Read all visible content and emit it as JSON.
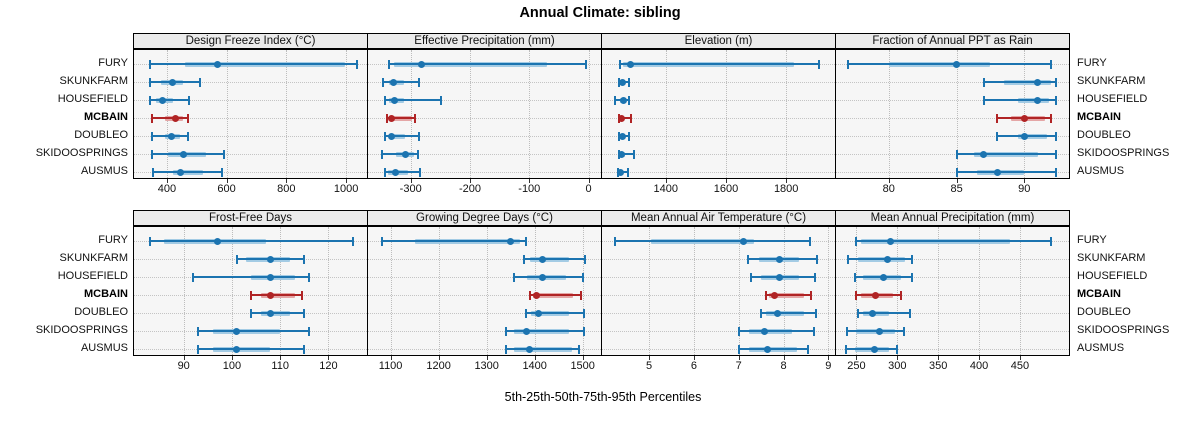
{
  "title": "Annual Climate: sibling",
  "axis_title": "5th-25th-50th-75th-95th Percentiles",
  "sites": [
    "FURY",
    "SKUNKFARM",
    "HOUSEFIELD",
    "MCBAIN",
    "DOUBLEO",
    "SKIDOOSPRINGS",
    "AUSMUS"
  ],
  "highlight_site": "MCBAIN",
  "percentile_labels": [
    "5th",
    "25th",
    "50th",
    "75th",
    "95th"
  ],
  "colors": {
    "series_main": "#1c74b0",
    "series_band": "#a3cbe4",
    "highlight_main": "#b02425",
    "highlight_band": "#e4a6a6",
    "strip_bg": "#ebebeb",
    "panel_bg": "#f6f6f6",
    "grid": "#bdbdbd",
    "border": "#000000"
  },
  "chart_data": {
    "type": "dot-whisker-percentiles",
    "value_order": [
      "p5",
      "p25",
      "p50",
      "p75",
      "p95"
    ],
    "legend_position": "none",
    "grid": "dotted",
    "layout": "2 rows x 4 columns, shared site axis; MCBAIN highlighted in red",
    "panels": [
      {
        "title": "Design Freeze Index (°C)",
        "xlim": [
          290,
          1070
        ],
        "ticks": [
          400,
          600,
          800,
          1000
        ],
        "series": [
          {
            "site": "FURY",
            "values": [
              345,
              460,
              570,
              995,
              1035
            ]
          },
          {
            "site": "SKUNKFARM",
            "values": [
              345,
              380,
              420,
              455,
              510
            ]
          },
          {
            "site": "HOUSEFIELD",
            "values": [
              345,
              365,
              385,
              420,
              475
            ]
          },
          {
            "site": "MCBAIN",
            "values": [
              350,
              395,
              430,
              455,
              470
            ]
          },
          {
            "site": "DOUBLEO",
            "values": [
              350,
              395,
              415,
              445,
              470
            ]
          },
          {
            "site": "SKIDOOSPRINGS",
            "values": [
              350,
              405,
              455,
              530,
              590
            ]
          },
          {
            "site": "AUSMUS",
            "values": [
              355,
              420,
              445,
              520,
              585
            ]
          }
        ]
      },
      {
        "title": "Effective Precipitation (mm)",
        "xlim": [
          -372,
          21
        ],
        "ticks": [
          -300,
          -200,
          -100,
          0
        ],
        "series": [
          {
            "site": "FURY",
            "values": [
              -336,
              -328,
              -282,
              -70,
              -5
            ]
          },
          {
            "site": "SKUNKFARM",
            "values": [
              -347,
              -337,
              -329,
              -312,
              -286
            ]
          },
          {
            "site": "HOUSEFIELD",
            "values": [
              -344,
              -337,
              -328,
              -311,
              -249
            ]
          },
          {
            "site": "MCBAIN",
            "values": [
              -340,
              -336,
              -332,
              -297,
              -292
            ]
          },
          {
            "site": "DOUBLEO",
            "values": [
              -343,
              -336,
              -332,
              -310,
              -286
            ]
          },
          {
            "site": "SKIDOOSPRINGS",
            "values": [
              -349,
              -325,
              -309,
              -295,
              -288
            ]
          },
          {
            "site": "AUSMUS",
            "values": [
              -344,
              -338,
              -326,
              -305,
              -284
            ]
          }
        ]
      },
      {
        "title": "Elevation (m)",
        "xlim": [
          1188,
          1962
        ],
        "ticks": [
          1400,
          1600,
          1800
        ],
        "series": [
          {
            "site": "FURY",
            "values": [
              1248,
              1256,
              1281,
              1826,
              1908
            ]
          },
          {
            "site": "SKUNKFARM",
            "values": [
              1243,
              1250,
              1256,
              1265,
              1276
            ]
          },
          {
            "site": "HOUSEFIELD",
            "values": [
              1230,
              1248,
              1259,
              1268,
              1278
            ]
          },
          {
            "site": "MCBAIN",
            "values": [
              1243,
              1248,
              1252,
              1262,
              1285
            ]
          },
          {
            "site": "DOUBLEO",
            "values": [
              1245,
              1251,
              1256,
              1264,
              1276
            ]
          },
          {
            "site": "SKIDOOSPRINGS",
            "values": [
              1245,
              1250,
              1254,
              1266,
              1293
            ]
          },
          {
            "site": "AUSMUS",
            "values": [
              1241,
              1246,
              1250,
              1258,
              1274
            ]
          }
        ]
      },
      {
        "title": "Fraction of Annual PPT as Rain",
        "xlim": [
          76.1,
          93.3
        ],
        "ticks": [
          80,
          85,
          90
        ],
        "series": [
          {
            "site": "FURY",
            "values": [
              77,
              80,
              85,
              87.5,
              92
            ]
          },
          {
            "site": "SKUNKFARM",
            "values": [
              87,
              88.5,
              91,
              92,
              92.3
            ]
          },
          {
            "site": "HOUSEFIELD",
            "values": [
              87,
              89.5,
              91,
              91.8,
              92.3
            ]
          },
          {
            "site": "MCBAIN",
            "values": [
              88,
              89,
              90,
              91.5,
              92
            ]
          },
          {
            "site": "DOUBLEO",
            "values": [
              88,
              89.5,
              90,
              91.7,
              92.3
            ]
          },
          {
            "site": "SKIDOOSPRINGS",
            "values": [
              85,
              86.3,
              87,
              91,
              92.3
            ]
          },
          {
            "site": "AUSMUS",
            "values": [
              85,
              86.5,
              88,
              90,
              92.3
            ]
          }
        ]
      },
      {
        "title": "Frost-Free Days",
        "xlim": [
          79.7,
          128
        ],
        "ticks": [
          90,
          100,
          110,
          120
        ],
        "series": [
          {
            "site": "FURY",
            "values": [
              83,
              86,
              97,
              107,
              125
            ]
          },
          {
            "site": "SKUNKFARM",
            "values": [
              101,
              103,
              108,
              112,
              115
            ]
          },
          {
            "site": "HOUSEFIELD",
            "values": [
              92,
              104,
              108,
              113,
              116
            ]
          },
          {
            "site": "MCBAIN",
            "values": [
              104,
              106,
              108,
              113,
              114.5
            ]
          },
          {
            "site": "DOUBLEO",
            "values": [
              104,
              106,
              108,
              112,
              115
            ]
          },
          {
            "site": "SKIDOOSPRINGS",
            "values": [
              93,
              96,
              101,
              110,
              116
            ]
          },
          {
            "site": "AUSMUS",
            "values": [
              93,
              96,
              101,
              108,
              115
            ]
          }
        ]
      },
      {
        "title": "Growing Degree Days (°C)",
        "xlim": [
          1053,
          1538
        ],
        "ticks": [
          1100,
          1200,
          1300,
          1400,
          1500
        ],
        "series": [
          {
            "site": "FURY",
            "values": [
              1082,
              1150,
              1350,
              1370,
              1382
            ]
          },
          {
            "site": "SKUNKFARM",
            "values": [
              1377,
              1390,
              1417,
              1472,
              1505
            ]
          },
          {
            "site": "HOUSEFIELD",
            "values": [
              1356,
              1383,
              1417,
              1466,
              1500
            ]
          },
          {
            "site": "MCBAIN",
            "values": [
              1390,
              1397,
              1404,
              1480,
              1497
            ]
          },
          {
            "site": "DOUBLEO",
            "values": [
              1382,
              1392,
              1407,
              1472,
              1503
            ]
          },
          {
            "site": "SKIDOOSPRINGS",
            "values": [
              1340,
              1356,
              1382,
              1472,
              1503
            ]
          },
          {
            "site": "AUSMUS",
            "values": [
              1340,
              1356,
              1389,
              1478,
              1492
            ]
          }
        ]
      },
      {
        "title": "Mean Annual Air Temperature (°C)",
        "xlim": [
          3.95,
          9.15
        ],
        "ticks": [
          5,
          6,
          7,
          8,
          9
        ],
        "series": [
          {
            "site": "FURY",
            "values": [
              4.25,
              5.05,
              7.1,
              7.35,
              8.6
            ]
          },
          {
            "site": "SKUNKFARM",
            "values": [
              7.2,
              7.45,
              7.9,
              8.35,
              8.75
            ]
          },
          {
            "site": "HOUSEFIELD",
            "values": [
              7.27,
              7.5,
              7.9,
              8.35,
              8.7
            ]
          },
          {
            "site": "MCBAIN",
            "values": [
              7.6,
              7.67,
              7.8,
              8.45,
              8.62
            ]
          },
          {
            "site": "DOUBLEO",
            "values": [
              7.5,
              7.62,
              7.87,
              8.45,
              8.72
            ]
          },
          {
            "site": "SKIDOOSPRINGS",
            "values": [
              7.0,
              7.22,
              7.58,
              8.2,
              8.68
            ]
          },
          {
            "site": "AUSMUS",
            "values": [
              7.0,
              7.22,
              7.64,
              8.3,
              8.54
            ]
          }
        ]
      },
      {
        "title": "Mean Annual Precipitation (mm)",
        "xlim": [
          225,
          510
        ],
        "ticks": [
          250,
          300,
          350,
          400,
          450
        ],
        "series": [
          {
            "site": "FURY",
            "values": [
              250,
              256,
              292,
              438,
              488
            ]
          },
          {
            "site": "SKUNKFARM",
            "values": [
              240,
              252,
              288,
              310,
              318
            ]
          },
          {
            "site": "HOUSEFIELD",
            "values": [
              248,
              258,
              283,
              305,
              318
            ]
          },
          {
            "site": "MCBAIN",
            "values": [
              250,
              255,
              273,
              295,
              305
            ]
          },
          {
            "site": "DOUBLEO",
            "values": [
              252,
              258,
              270,
              290,
              315
            ]
          },
          {
            "site": "SKIDOOSPRINGS",
            "values": [
              238,
              250,
              278,
              297,
              308
            ]
          },
          {
            "site": "AUSMUS",
            "values": [
              237,
              248,
              272,
              290,
              300
            ]
          }
        ]
      }
    ]
  }
}
